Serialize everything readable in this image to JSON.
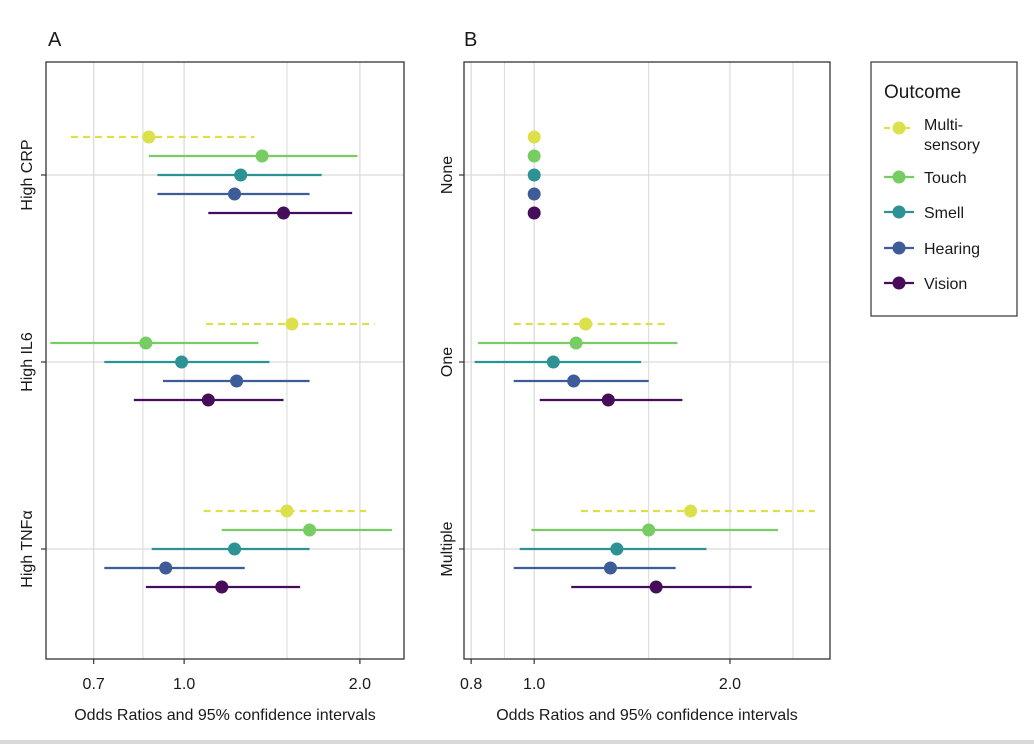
{
  "chart_data": [
    {
      "type": "forest",
      "panel_label": "A",
      "xlabel": "Odds Ratios and 95% confidence intervals",
      "xscale": "log",
      "xlim": [
        0.58,
        2.38
      ],
      "xticks": [
        0.7,
        1.0,
        2.0
      ],
      "xtick_labels": [
        "0.7",
        "1.0",
        "2.0"
      ],
      "minor_gridlines": [
        0.85,
        1.5
      ],
      "categories": [
        "High CRP",
        "High IL6",
        "High TNFα"
      ],
      "series": [
        {
          "name": "Multi-sensory",
          "values": [
            {
              "or": 0.87,
              "lo": 0.64,
              "hi": 1.32
            },
            {
              "or": 1.53,
              "lo": 1.09,
              "hi": 2.12
            },
            {
              "or": 1.5,
              "lo": 1.08,
              "hi": 2.05
            }
          ]
        },
        {
          "name": "Touch",
          "values": [
            {
              "or": 1.36,
              "lo": 0.87,
              "hi": 1.98
            },
            {
              "or": 0.86,
              "lo": 0.59,
              "hi": 1.34
            },
            {
              "or": 1.64,
              "lo": 1.16,
              "hi": 2.27
            }
          ]
        },
        {
          "name": "Smell",
          "values": [
            {
              "or": 1.25,
              "lo": 0.9,
              "hi": 1.72
            },
            {
              "or": 0.99,
              "lo": 0.73,
              "hi": 1.4
            },
            {
              "or": 1.22,
              "lo": 0.88,
              "hi": 1.64
            }
          ]
        },
        {
          "name": "Hearing",
          "values": [
            {
              "or": 1.22,
              "lo": 0.9,
              "hi": 1.64
            },
            {
              "or": 1.23,
              "lo": 0.92,
              "hi": 1.64
            },
            {
              "or": 0.93,
              "lo": 0.73,
              "hi": 1.27
            }
          ]
        },
        {
          "name": "Vision",
          "values": [
            {
              "or": 1.48,
              "lo": 1.1,
              "hi": 1.94
            },
            {
              "or": 1.1,
              "lo": 0.82,
              "hi": 1.48
            },
            {
              "or": 1.16,
              "lo": 0.86,
              "hi": 1.58
            }
          ]
        }
      ]
    },
    {
      "type": "forest",
      "panel_label": "B",
      "xlabel": "Odds Ratios and 95% confidence intervals",
      "xscale": "log",
      "xlim": [
        0.78,
        2.85
      ],
      "xticks": [
        0.8,
        1.0,
        2.0
      ],
      "xtick_labels": [
        "0.8",
        "1.0",
        "2.0"
      ],
      "minor_gridlines": [
        0.9,
        1.5,
        2.5
      ],
      "categories": [
        "None",
        "One",
        "Multiple"
      ],
      "series": [
        {
          "name": "Multi-sensory",
          "values": [
            {
              "or": 1.0,
              "lo": 1.0,
              "hi": 1.0
            },
            {
              "or": 1.2,
              "lo": 0.93,
              "hi": 1.6
            },
            {
              "or": 1.74,
              "lo": 1.18,
              "hi": 2.7
            }
          ]
        },
        {
          "name": "Touch",
          "values": [
            {
              "or": 1.0,
              "lo": 1.0,
              "hi": 1.0
            },
            {
              "or": 1.16,
              "lo": 0.82,
              "hi": 1.66
            },
            {
              "or": 1.5,
              "lo": 0.99,
              "hi": 2.37
            }
          ]
        },
        {
          "name": "Smell",
          "values": [
            {
              "or": 1.0,
              "lo": 1.0,
              "hi": 1.0
            },
            {
              "or": 1.07,
              "lo": 0.81,
              "hi": 1.46
            },
            {
              "or": 1.34,
              "lo": 0.95,
              "hi": 1.84
            }
          ]
        },
        {
          "name": "Hearing",
          "values": [
            {
              "or": 1.0,
              "lo": 1.0,
              "hi": 1.0
            },
            {
              "or": 1.15,
              "lo": 0.93,
              "hi": 1.5
            },
            {
              "or": 1.31,
              "lo": 0.93,
              "hi": 1.65
            }
          ]
        },
        {
          "name": "Vision",
          "values": [
            {
              "or": 1.0,
              "lo": 1.0,
              "hi": 1.0
            },
            {
              "or": 1.3,
              "lo": 1.02,
              "hi": 1.69
            },
            {
              "or": 1.54,
              "lo": 1.14,
              "hi": 2.16
            }
          ]
        }
      ]
    }
  ],
  "legend": {
    "title": "Outcome",
    "placement": "right",
    "entries": [
      {
        "label_lines": [
          "Multi-",
          "sensory"
        ],
        "color": "#dce04a",
        "dashed": true
      },
      {
        "label_lines": [
          "Touch"
        ],
        "color": "#77cc63",
        "dashed": false
      },
      {
        "label_lines": [
          "Smell"
        ],
        "color": "#2d9293",
        "dashed": false
      },
      {
        "label_lines": [
          "Hearing"
        ],
        "color": "#3d5c98",
        "dashed": false
      },
      {
        "label_lines": [
          "Vision"
        ],
        "color": "#460e5a",
        "dashed": false
      }
    ]
  },
  "colors": {
    "Multi-sensory": "#dce04a",
    "Touch": "#77cc63",
    "Smell": "#2d9293",
    "Hearing": "#3d5c98",
    "Vision": "#460e5a",
    "grid": "#d9d9d9",
    "axis": "#333333"
  }
}
